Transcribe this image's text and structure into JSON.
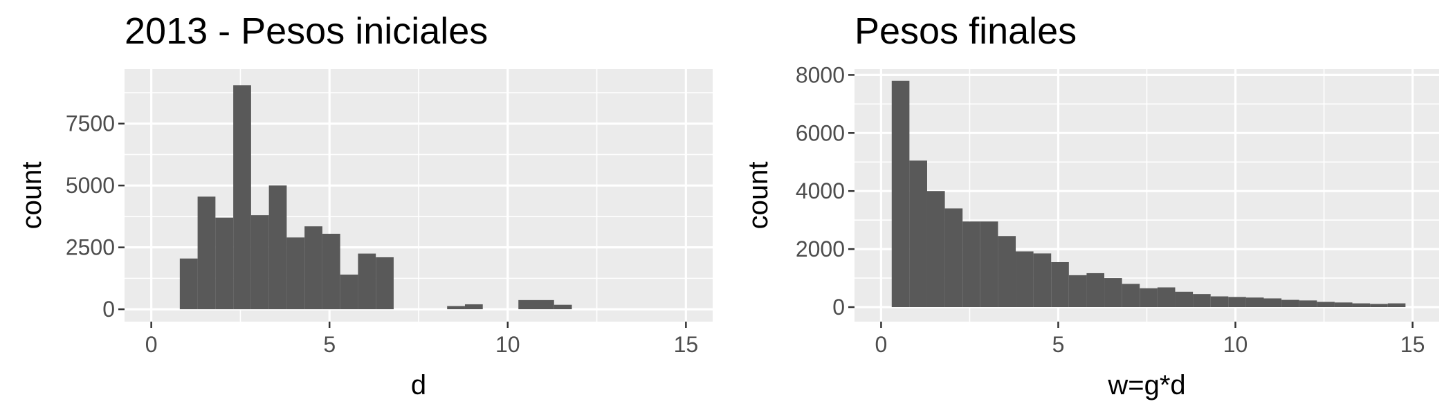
{
  "chart_data": [
    {
      "type": "bar",
      "title": "2013 - Pesos iniciales",
      "xlabel": "d",
      "ylabel": "count",
      "xlim": [
        -0.75,
        15.75
      ],
      "ylim": [
        -500,
        9700
      ],
      "x_ticks": [
        0,
        5,
        10,
        15
      ],
      "x_tick_labels": [
        "0",
        "5",
        "10",
        "15"
      ],
      "y_ticks": [
        0,
        2500,
        5000,
        7500
      ],
      "y_tick_labels": [
        "0",
        "2500",
        "5000",
        "7500"
      ],
      "bin_width": 0.5,
      "bins": [
        {
          "x0": 0.8,
          "count": 2050
        },
        {
          "x0": 1.3,
          "count": 4550
        },
        {
          "x0": 1.8,
          "count": 3700
        },
        {
          "x0": 2.3,
          "count": 9050
        },
        {
          "x0": 2.8,
          "count": 3800
        },
        {
          "x0": 3.3,
          "count": 5000
        },
        {
          "x0": 3.8,
          "count": 2900
        },
        {
          "x0": 4.3,
          "count": 3350
        },
        {
          "x0": 4.8,
          "count": 3050
        },
        {
          "x0": 5.3,
          "count": 1400
        },
        {
          "x0": 5.8,
          "count": 2250
        },
        {
          "x0": 6.3,
          "count": 2100
        },
        {
          "x0": 8.3,
          "count": 130
        },
        {
          "x0": 8.8,
          "count": 200
        },
        {
          "x0": 10.3,
          "count": 370
        },
        {
          "x0": 10.8,
          "count": 370
        },
        {
          "x0": 11.3,
          "count": 180
        }
      ],
      "bar_color": "#595959",
      "panel_color": "#ebebeb"
    },
    {
      "type": "bar",
      "title": "Pesos finales",
      "xlabel": "w=g*d",
      "ylabel": "count",
      "xlim": [
        -0.75,
        15.75
      ],
      "ylim": [
        -500,
        8200
      ],
      "x_ticks": [
        0,
        5,
        10,
        15
      ],
      "x_tick_labels": [
        "0",
        "5",
        "10",
        "15"
      ],
      "y_ticks": [
        0,
        2000,
        4000,
        6000,
        8000
      ],
      "y_tick_labels": [
        "0",
        "2000",
        "4000",
        "6000",
        "8000"
      ],
      "bin_width": 0.5,
      "bins": [
        {
          "x0": 0.3,
          "count": 7800
        },
        {
          "x0": 0.8,
          "count": 5050
        },
        {
          "x0": 1.3,
          "count": 4000
        },
        {
          "x0": 1.8,
          "count": 3400
        },
        {
          "x0": 2.3,
          "count": 2950
        },
        {
          "x0": 2.8,
          "count": 2950
        },
        {
          "x0": 3.3,
          "count": 2450
        },
        {
          "x0": 3.8,
          "count": 1920
        },
        {
          "x0": 4.3,
          "count": 1850
        },
        {
          "x0": 4.8,
          "count": 1550
        },
        {
          "x0": 5.3,
          "count": 1100
        },
        {
          "x0": 5.8,
          "count": 1170
        },
        {
          "x0": 6.3,
          "count": 1000
        },
        {
          "x0": 6.8,
          "count": 800
        },
        {
          "x0": 7.3,
          "count": 650
        },
        {
          "x0": 7.8,
          "count": 680
        },
        {
          "x0": 8.3,
          "count": 530
        },
        {
          "x0": 8.8,
          "count": 450
        },
        {
          "x0": 9.3,
          "count": 370
        },
        {
          "x0": 9.8,
          "count": 350
        },
        {
          "x0": 10.3,
          "count": 330
        },
        {
          "x0": 10.8,
          "count": 300
        },
        {
          "x0": 11.3,
          "count": 250
        },
        {
          "x0": 11.8,
          "count": 230
        },
        {
          "x0": 12.3,
          "count": 180
        },
        {
          "x0": 12.8,
          "count": 160
        },
        {
          "x0": 13.3,
          "count": 130
        },
        {
          "x0": 13.8,
          "count": 110
        },
        {
          "x0": 14.3,
          "count": 130
        }
      ],
      "bar_color": "#595959",
      "panel_color": "#ebebeb"
    }
  ]
}
